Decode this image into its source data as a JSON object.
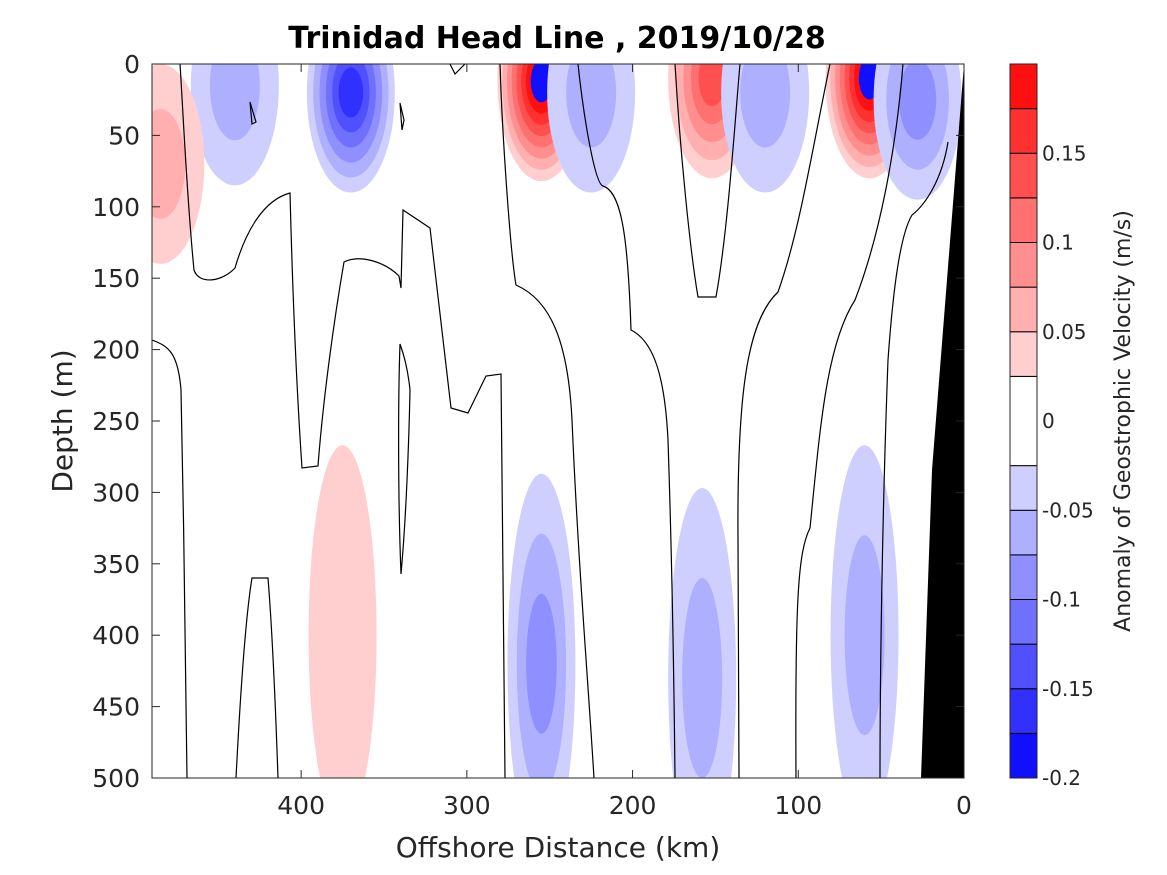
{
  "chart_data": {
    "type": "heatmap",
    "title": "Trinidad Head Line , 2019/10/28",
    "xlabel": "Offshore Distance (km)",
    "ylabel": "Depth (m)",
    "colorbar_label": "Anomaly of Geostrophic Velocity (m/s)",
    "xlim": [
      490,
      0
    ],
    "ylim": [
      0,
      500
    ],
    "x_reversed": true,
    "y_reversed": true,
    "x_ticks": [
      400,
      300,
      200,
      100,
      0
    ],
    "y_ticks": [
      0,
      50,
      100,
      150,
      200,
      250,
      300,
      350,
      400,
      450,
      500
    ],
    "colorbar_range": [
      -0.2,
      0.2
    ],
    "colorbar_ticks": [
      -0.2,
      -0.15,
      -0.1,
      -0.05,
      0,
      0.05,
      0.1,
      0.15
    ],
    "colorbar_levels": [
      -0.2,
      -0.175,
      -0.15,
      -0.125,
      -0.1,
      -0.075,
      -0.05,
      -0.025,
      0.025,
      0.05,
      0.075,
      0.1,
      0.125,
      0.15,
      0.175,
      0.2
    ],
    "colormap": {
      "negative": "#0000ff",
      "zero": "#ffffff",
      "positive": "#ff0000"
    },
    "features": [
      {
        "x": 255,
        "depth": 12,
        "value": 0.19
      },
      {
        "x": 152,
        "depth": 10,
        "value": 0.12
      },
      {
        "x": 57,
        "depth": 10,
        "value": 0.19
      },
      {
        "x": 370,
        "depth": 20,
        "value": -0.14
      },
      {
        "x": 440,
        "depth": 15,
        "value": -0.06
      },
      {
        "x": 225,
        "depth": 20,
        "value": -0.04
      },
      {
        "x": 120,
        "depth": 20,
        "value": -0.04
      },
      {
        "x": 28,
        "depth": 25,
        "value": -0.07
      },
      {
        "x": 485,
        "depth": 70,
        "value": 0.05
      },
      {
        "x": 255,
        "depth": 420,
        "value": -0.07
      },
      {
        "x": 60,
        "depth": 400,
        "value": -0.04
      },
      {
        "x": 158,
        "depth": 430,
        "value": -0.04
      },
      {
        "x": 375,
        "depth": 400,
        "value": 0.03
      }
    ],
    "bathymetry_color": "#000000"
  }
}
